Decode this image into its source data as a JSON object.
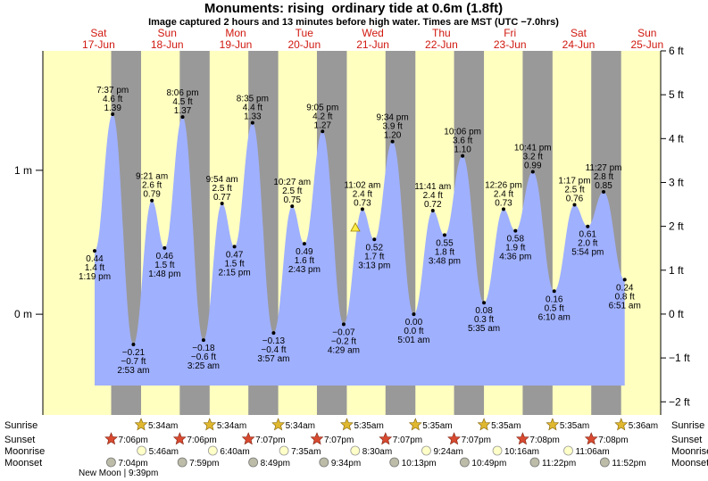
{
  "chart_data": {
    "type": "tide",
    "title": "Monuments: rising  ordinary tide at 0.6m (1.8ft)",
    "subtitle": "Image captured 2 hours and 13 minutes before high water. Times are MST (UTC −7.0hrs)",
    "days": [
      {
        "weekday": "Sat",
        "date": "17-Jun"
      },
      {
        "weekday": "Sun",
        "date": "18-Jun"
      },
      {
        "weekday": "Mon",
        "date": "19-Jun"
      },
      {
        "weekday": "Tue",
        "date": "20-Jun"
      },
      {
        "weekday": "Wed",
        "date": "21-Jun"
      },
      {
        "weekday": "Thu",
        "date": "22-Jun"
      },
      {
        "weekday": "Fri",
        "date": "23-Jun"
      },
      {
        "weekday": "Sat",
        "date": "24-Jun"
      },
      {
        "weekday": "Sun",
        "date": "25-Jun"
      }
    ],
    "ylim": [
      -0.7,
      1.83
    ],
    "yticks": [
      {
        "value": 1,
        "label": "1 m"
      },
      {
        "value": 0,
        "label": "0 m"
      }
    ],
    "y2lim": [
      -2.3,
      6
    ],
    "y2ticks": [
      {
        "value": 6,
        "label": "6 ft"
      },
      {
        "value": 5,
        "label": "5 ft"
      },
      {
        "value": 4,
        "label": "4 ft"
      },
      {
        "value": 3,
        "label": "3 ft"
      },
      {
        "value": 2,
        "label": "2 ft"
      },
      {
        "value": 1,
        "label": "1 ft"
      },
      {
        "value": 0,
        "label": "0 ft"
      },
      {
        "value": -1,
        "label": "−1 ft"
      },
      {
        "value": -2,
        "label": "−2 ft"
      }
    ],
    "color": "#9fb0ff",
    "extremes": {
      "times": [
        "1:19 pm",
        "7:37 pm",
        "2:53 am",
        "9:21 am",
        "1:48 pm",
        "8:06 pm",
        "3:25 am",
        "9:54 am",
        "2:15 pm",
        "8:35 pm",
        "3:57 am",
        "10:27 am",
        "2:43 pm",
        "9:05 pm",
        "4:29 am",
        "11:02 am",
        "3:13 pm",
        "9:34 pm",
        "5:01 am",
        "11:41 am",
        "3:48 pm",
        "10:06 pm",
        "5:35 am",
        "12:26 pm",
        "4:36 pm",
        "10:41 pm",
        "6:10 am",
        "1:17 pm",
        "5:54 pm",
        "11:27 pm",
        "6:51 am"
      ],
      "values": [
        0.44,
        1.39,
        -0.21,
        0.79,
        0.46,
        1.37,
        -0.18,
        0.77,
        0.47,
        1.33,
        -0.13,
        0.75,
        0.49,
        1.27,
        -0.07,
        0.73,
        0.52,
        1.2,
        0.0,
        0.72,
        0.55,
        1.1,
        0.08,
        0.73,
        0.58,
        0.99,
        0.16,
        0.76,
        0.61,
        0.85,
        0.24
      ],
      "value_labels": [
        "0.44",
        "1.39",
        "−0.21",
        "0.79",
        "0.46",
        "1.37",
        "−0.18",
        "0.77",
        "0.47",
        "1.33",
        "−0.13",
        "0.75",
        "0.49",
        "1.27",
        "−0.07",
        "0.73",
        "0.52",
        "1.20",
        "0.00",
        "0.72",
        "0.55",
        "1.10",
        "0.08",
        "0.73",
        "0.58",
        "0.99",
        "0.16",
        "0.76",
        "0.61",
        "0.85",
        "0.24"
      ],
      "ft_labels": [
        "1.4 ft",
        "4.6 ft",
        "−0.7 ft",
        "2.6 ft",
        "1.5 ft",
        "4.5 ft",
        "−0.6 ft",
        "2.5 ft",
        "1.5 ft",
        "4.4 ft",
        "−0.4 ft",
        "2.5 ft",
        "1.6 ft",
        "4.2 ft",
        "−0.2 ft",
        "2.4 ft",
        "1.7 ft",
        "3.9 ft",
        "0.0 ft",
        "2.4 ft",
        "1.8 ft",
        "3.6 ft",
        "0.3 ft",
        "2.4 ft",
        "1.9 ft",
        "3.2 ft",
        "0.5 ft",
        "2.5 ft",
        "2.0 ft",
        "2.8 ft",
        "0.8 ft"
      ]
    },
    "events": [
      {
        "label": "Sunrise",
        "times": [
          null,
          "5:34am",
          "5:34am",
          "5:34am",
          "5:35am",
          "5:35am",
          "5:35am",
          "5:35am",
          "5:36am"
        ]
      },
      {
        "label": "Sunset",
        "times": [
          "7:06pm",
          "7:06pm",
          "7:07pm",
          "7:07pm",
          "7:07pm",
          "7:07pm",
          "7:08pm",
          "7:08pm",
          null
        ]
      },
      {
        "label": "Moonrise",
        "times": [
          null,
          "5:46am",
          "6:40am",
          "7:35am",
          "8:30am",
          "9:24am",
          "10:16am",
          "11:06am",
          null
        ]
      },
      {
        "label": "Moonset",
        "times": [
          "7:04pm",
          "7:59pm",
          "8:49pm",
          "9:34pm",
          "10:13pm",
          "10:49pm",
          "11:22pm",
          "11:52pm",
          null
        ]
      }
    ],
    "moon_phase": "New Moon | 9:39pm"
  }
}
